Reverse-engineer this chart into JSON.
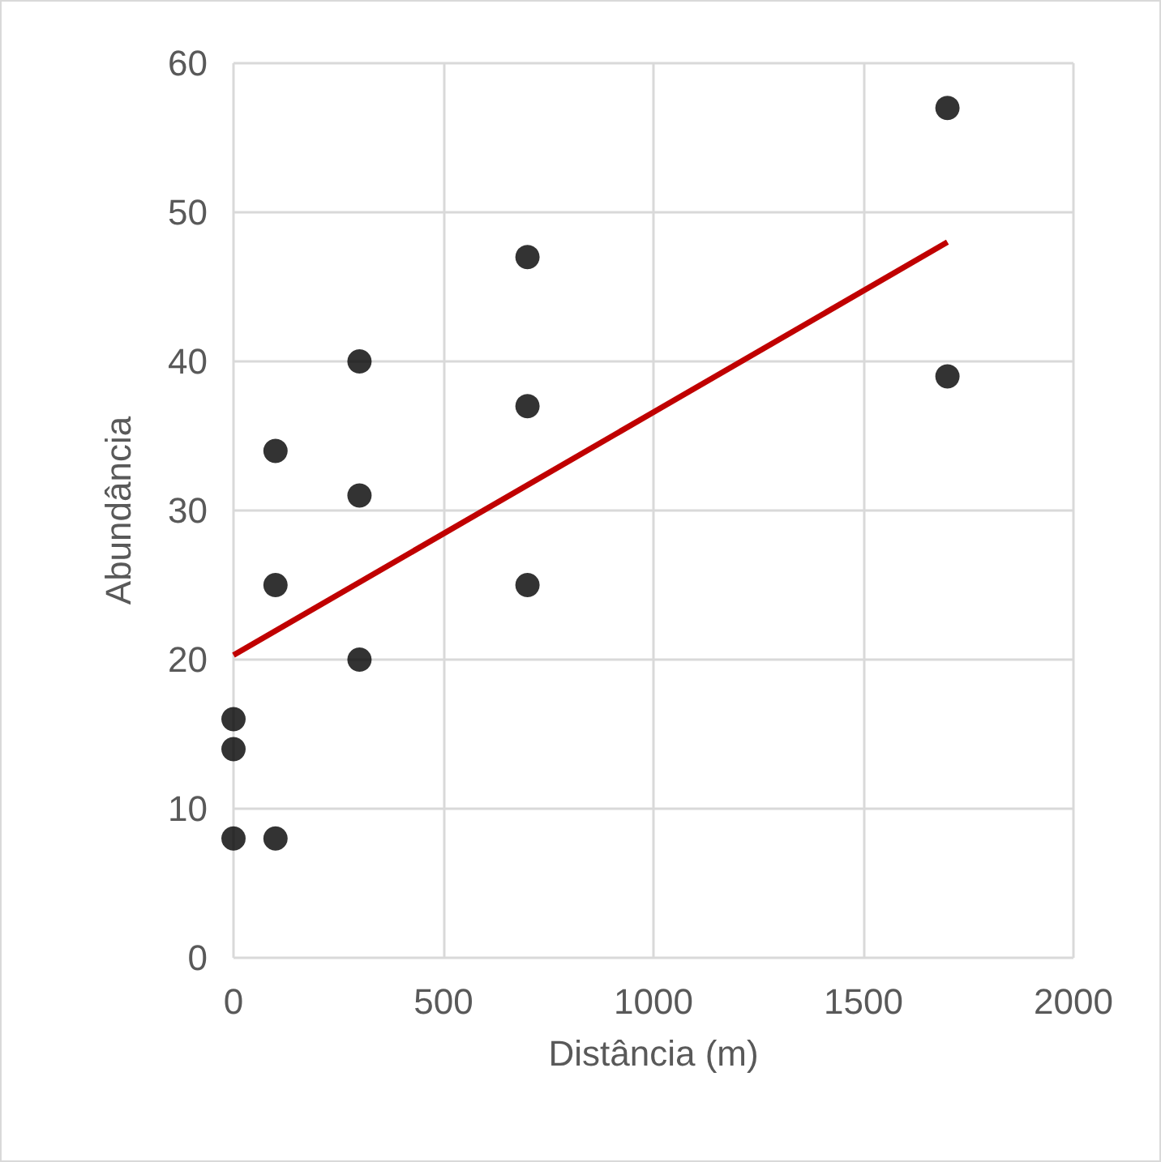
{
  "chart_data": {
    "type": "scatter",
    "xlabel": "Distância (m)",
    "ylabel": "Abundância",
    "series": [
      {
        "color": "#000000",
        "marker": "circle",
        "x": [
          0,
          0,
          0,
          100,
          100,
          100,
          300,
          300,
          300,
          700,
          700,
          700,
          1700,
          1700
        ],
        "values": [
          16,
          14,
          8,
          34,
          25,
          8,
          40,
          31,
          20,
          47,
          37,
          25,
          57,
          39
        ]
      },
      {
        "type": "line",
        "marker": "none",
        "color": "#c00000",
        "x": [
          0,
          1700
        ],
        "values": [
          20.3,
          48
        ]
      }
    ],
    "xlim": [
      0,
      2000
    ],
    "xticks": [
      0,
      500,
      1000,
      1500,
      2000
    ],
    "ylim": [
      0,
      60
    ],
    "yticks": [
      0,
      10,
      20,
      30,
      40,
      50,
      60
    ],
    "grid": true
  }
}
